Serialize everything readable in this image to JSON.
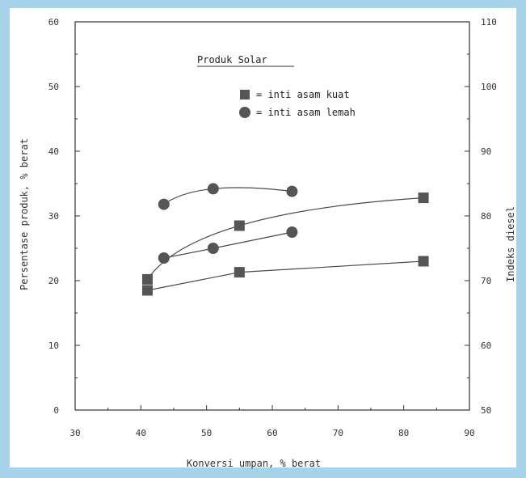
{
  "chart_data": {
    "type": "scatter",
    "title": "",
    "xlabel": "Konversi umpan, % berat",
    "ylabel": "Persentase produk, % berat",
    "y2label": "Indeks diesel",
    "xlim": [
      30,
      90
    ],
    "ylim": [
      0,
      60
    ],
    "y2lim": [
      50,
      110
    ],
    "x_ticks": [
      "30",
      "40",
      "50",
      "60",
      "70",
      "80",
      "90"
    ],
    "y_ticks": [
      "0",
      "10",
      "20",
      "30",
      "40",
      "50",
      "60"
    ],
    "y2_ticks": [
      "50",
      "60",
      "70",
      "80",
      "90",
      "100",
      "110"
    ],
    "annotation": "Produk Solar",
    "legend": [
      {
        "marker": "square",
        "label": "= inti asam kuat"
      },
      {
        "marker": "circle",
        "label": "= inti asam lemah"
      }
    ],
    "series": [
      {
        "marker": "square",
        "axis": "left",
        "x": [
          41,
          55,
          83
        ],
        "y": [
          20.2,
          28.5,
          32.8
        ]
      },
      {
        "marker": "square",
        "axis": "right",
        "x": [
          41,
          55,
          83
        ],
        "y": [
          68.5,
          71.3,
          73
        ]
      },
      {
        "marker": "circle",
        "axis": "left",
        "x": [
          43.5,
          51,
          63
        ],
        "y": [
          31.8,
          34.2,
          33.8
        ]
      },
      {
        "marker": "circle",
        "axis": "right",
        "x": [
          43.5,
          51,
          63
        ],
        "y": [
          73.5,
          75,
          77.5
        ]
      }
    ],
    "colors": {
      "marker": "#555555",
      "line": "#4a4a4a",
      "frame": "#333333",
      "background": "#ffffff",
      "border": "#a6d3ea"
    }
  }
}
